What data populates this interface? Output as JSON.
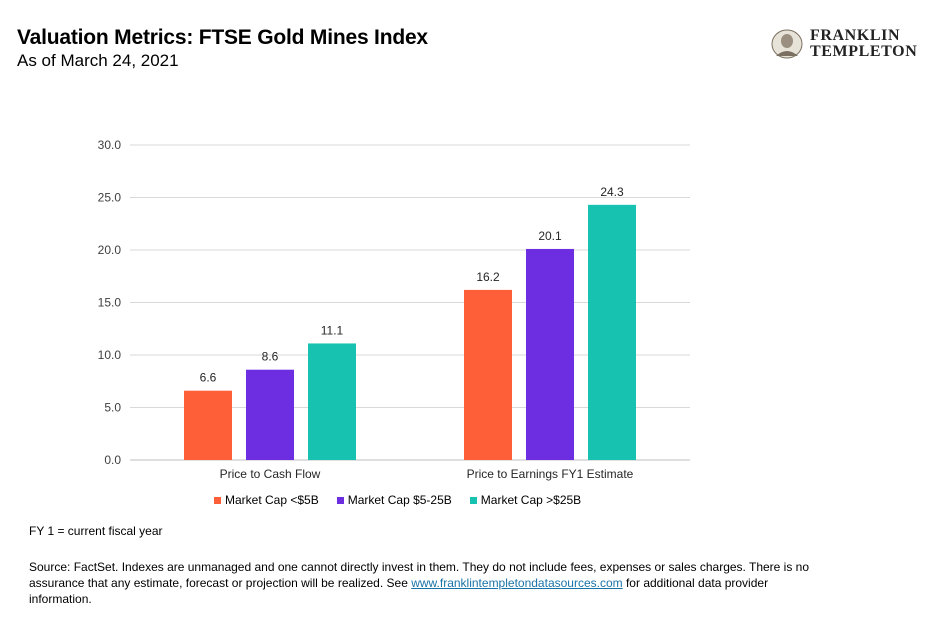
{
  "header": {
    "title": "Valuation Metrics: FTSE Gold Mines Index",
    "subtitle": "As of March 24, 2021",
    "logo_line1": "FRANKLIN",
    "logo_line2": "TEMPLETON"
  },
  "chart_data": {
    "type": "bar",
    "categories": [
      "Price to Cash Flow",
      "Price to Earnings FY1 Estimate"
    ],
    "series": [
      {
        "name": "Market Cap <$5B",
        "color": "#FF5F38",
        "values": [
          6.6,
          16.2
        ]
      },
      {
        "name": "Market Cap $5-25B",
        "color": "#6C2EE0",
        "values": [
          8.6,
          20.1
        ]
      },
      {
        "name": "Market Cap >$25B",
        "color": "#17C2B1",
        "values": [
          11.1,
          24.3
        ]
      }
    ],
    "ylim": [
      0,
      30
    ],
    "yticks": [
      "0.0",
      "5.0",
      "10.0",
      "15.0",
      "20.0",
      "25.0",
      "30.0"
    ],
    "grid": true,
    "legend": "bottom"
  },
  "footer": {
    "footnote": "FY 1 = current fiscal year",
    "source_before": "Source: FactSet. Indexes are unmanaged and one cannot directly invest in them. They do not include fees, expenses or sales charges. There is no assurance that any estimate, forecast or projection will be realized. See ",
    "source_link": "www.franklintempletondatasources.com",
    "source_after": " for additional data provider information."
  }
}
